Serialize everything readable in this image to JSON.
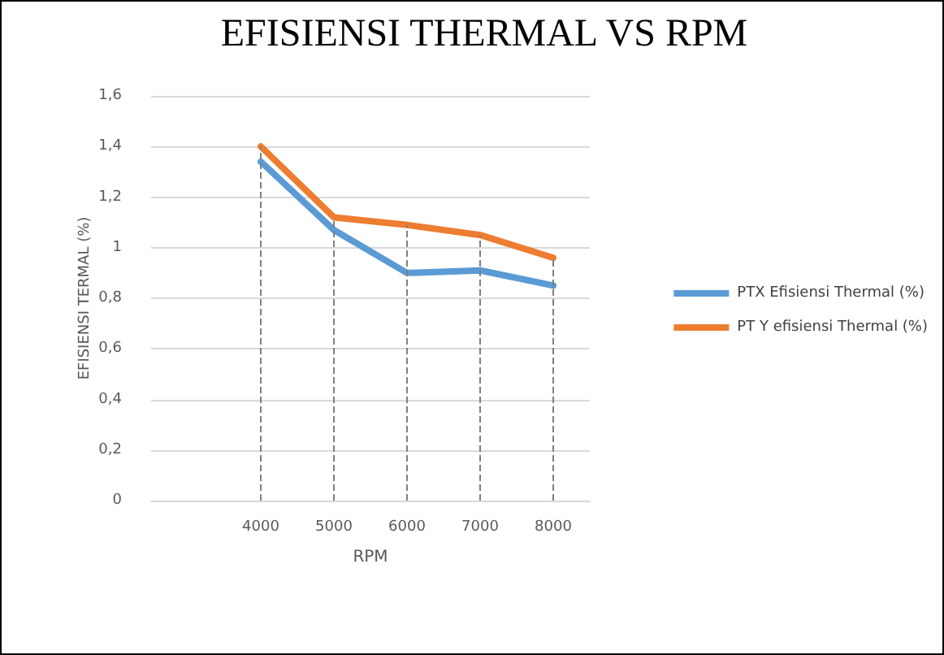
{
  "chart_data": {
    "type": "line",
    "title": "EFISIENSI THERMAL VS RPM",
    "xlabel": "RPM",
    "ylabel": "EFISIENSI TERMAL (%)",
    "categories": [
      null,
      "4000",
      "5000",
      "6000",
      "7000",
      "8000"
    ],
    "series": [
      {
        "name": "PTX Efisiensi Thermal (%)",
        "color": "#5b9bd5",
        "values": [
          null,
          1.34,
          1.07,
          0.9,
          0.91,
          0.85
        ]
      },
      {
        "name": "PT Y efisiensi Thermal (%)",
        "color": "#ed7d31",
        "values": [
          null,
          1.4,
          1.12,
          1.09,
          1.05,
          0.96
        ]
      }
    ],
    "ylim": [
      0,
      1.6
    ],
    "yticks": [
      0,
      {
        "value": 0.2,
        "label": "0,2"
      },
      {
        "value": 0.4,
        "label": "0,4"
      },
      {
        "value": 0.6,
        "label": "0,6"
      },
      {
        "value": 0.8,
        "label": "0,8"
      },
      1,
      {
        "value": 1.2,
        "label": "1,2"
      },
      {
        "value": 1.4,
        "label": "1,4"
      },
      {
        "value": 1.6,
        "label": "1,6"
      }
    ],
    "ref_lines": [
      {
        "axis": "x",
        "value": "4000",
        "color": "#7f7f7f",
        "line_style": "dashed"
      },
      {
        "axis": "x",
        "value": "5000",
        "color": "#7f7f7f",
        "line_style": "dashed"
      },
      {
        "axis": "x",
        "value": "6000",
        "color": "#7f7f7f",
        "line_style": "dashed"
      },
      {
        "axis": "x",
        "value": "7000",
        "color": "#7f7f7f",
        "line_style": "dashed"
      },
      {
        "axis": "x",
        "value": "8000",
        "color": "#7f7f7f",
        "line_style": "dashed"
      }
    ],
    "grid": "y",
    "legend": "right",
    "marker": "none",
    "line_style": "solid"
  }
}
